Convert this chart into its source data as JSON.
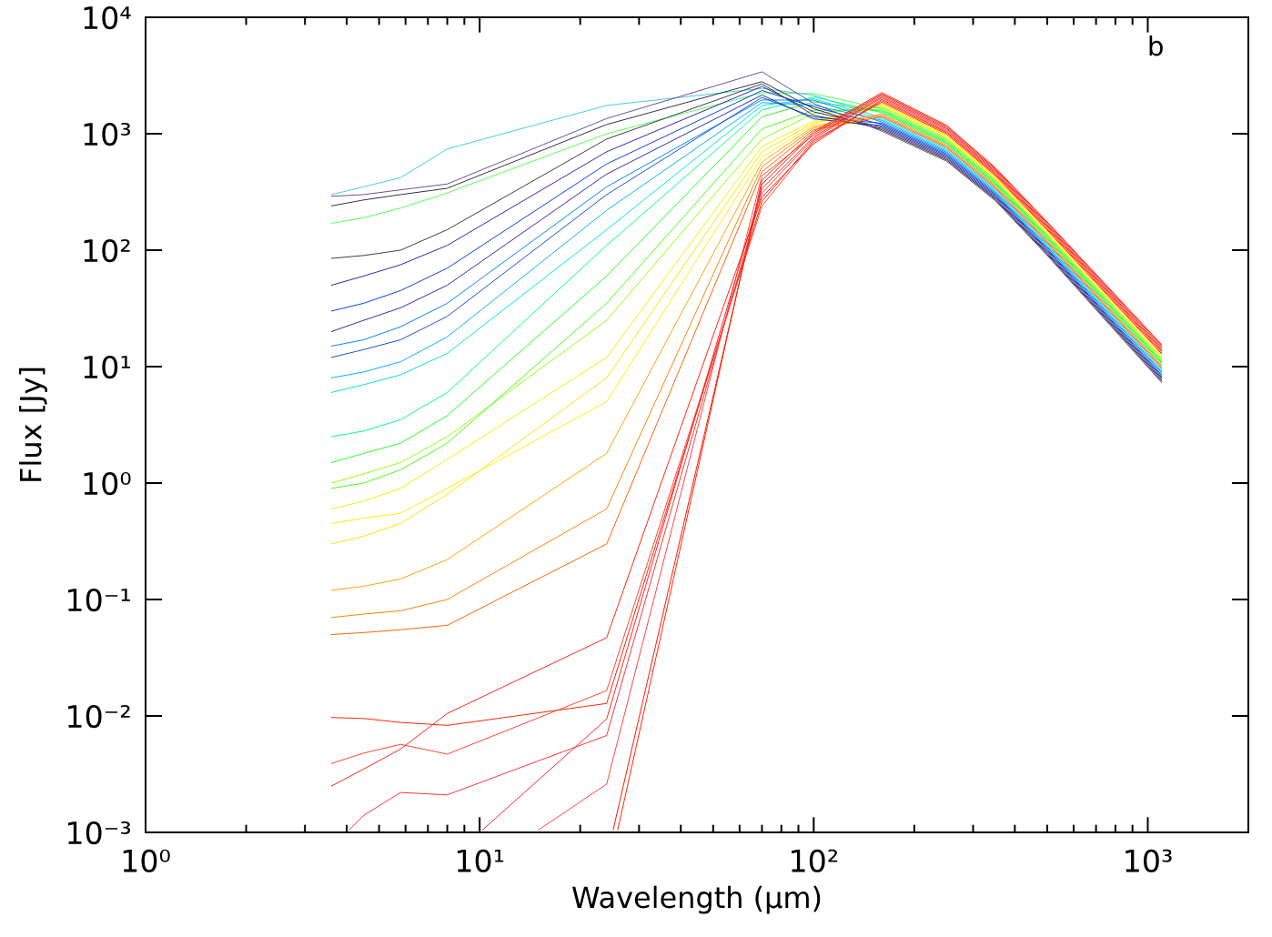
{
  "chart_data": {
    "type": "line",
    "xlabel": "Wavelength (μm)",
    "ylabel": "Flux [Jy]",
    "annotations": [
      "b"
    ],
    "x": [
      3.6,
      4.5,
      5.8,
      8,
      24,
      70,
      100,
      160,
      250,
      350,
      500,
      1100
    ],
    "log": "xy",
    "xlim": [
      1,
      2000
    ],
    "ylim": [
      0.001,
      10000
    ],
    "xticks": [
      {
        "value": 1,
        "label": "10⁰"
      },
      {
        "value": 10,
        "label": "10¹"
      },
      {
        "value": 100,
        "label": "10²"
      },
      {
        "value": 1000,
        "label": "10³"
      }
    ],
    "yticks": [
      {
        "value": 0.001,
        "label": "10⁻³"
      },
      {
        "value": 0.01,
        "label": "10⁻²"
      },
      {
        "value": 0.1,
        "label": "10⁻¹"
      },
      {
        "value": 1,
        "label": "10⁰"
      },
      {
        "value": 10,
        "label": "10¹"
      },
      {
        "value": 100,
        "label": "10²"
      },
      {
        "value": 1000,
        "label": "10³"
      },
      {
        "value": 10000,
        "label": "10⁴"
      }
    ],
    "line_style": "solid",
    "series": [
      {
        "color": "#d8ff00",
        "values": [
          0.6,
          0.7,
          0.9,
          1.6,
          12,
          780,
          1290,
          1730,
          924,
          407,
          139,
          11.9
        ]
      },
      {
        "color": "#ffe000",
        "values": [
          0.3,
          0.35,
          0.45,
          0.8,
          8,
          700,
          1240,
          1780,
          947,
          417,
          142,
          12.2
        ]
      },
      {
        "color": "#fff000",
        "values": [
          0.45,
          0.5,
          0.55,
          0.9,
          5,
          630,
          1200,
          1820,
          970,
          426,
          146,
          12.6
        ]
      },
      {
        "color": "#90ff00",
        "values": [
          1.0,
          1.2,
          1.5,
          2.5,
          25,
          900,
          1490,
          1690,
          902,
          398,
          136,
          11.6
        ]
      },
      {
        "color": "#20ff20",
        "values": [
          1.5,
          1.8,
          2.2,
          3.8,
          60,
          1400,
          1880,
          1560,
          838,
          372,
          127,
          10.8
        ]
      },
      {
        "color": "#40ff10",
        "values": [
          0.9,
          1.0,
          1.3,
          2.2,
          35,
          1100,
          1590,
          1600,
          858,
          381,
          130,
          11.0
        ]
      },
      {
        "color": "#00ff80",
        "values": [
          2.5,
          2.8,
          3.5,
          6,
          110,
          1600,
          2070,
          1520,
          818,
          364,
          124,
          10.5
        ]
      },
      {
        "color": "#50ff50",
        "values": [
          170,
          190,
          230,
          310,
          1000,
          2250,
          2210,
          1640,
          880,
          389,
          133,
          11.3
        ]
      },
      {
        "color": "#00e0e0",
        "values": [
          6,
          7,
          8.5,
          13,
          150,
          1750,
          2000,
          1330,
          723,
          325,
          111,
          9.2
        ]
      },
      {
        "color": "#40c8f0",
        "values": [
          300,
          350,
          420,
          740,
          1750,
          2450,
          2140,
          1370,
          741,
          332,
          113,
          9.5
        ]
      },
      {
        "color": "#00b0ff",
        "values": [
          8,
          9,
          11,
          18,
          220,
          1850,
          1760,
          1300,
          706,
          318,
          108,
          9.0
        ]
      },
      {
        "color": "#0080ff",
        "values": [
          15,
          17,
          22,
          35,
          350,
          1950,
          1940,
          1260,
          689,
          310,
          106,
          8.8
        ]
      },
      {
        "color": "#0040e0",
        "values": [
          30,
          35,
          45,
          70,
          550,
          2350,
          1700,
          1200,
          656,
          297,
          101,
          8.3
        ]
      },
      {
        "color": "#1050d0",
        "values": [
          12,
          14,
          17,
          27,
          300,
          2050,
          1390,
          1230,
          672,
          303,
          103,
          8.5
        ]
      },
      {
        "color": "#3020b0",
        "values": [
          50,
          60,
          75,
          110,
          700,
          2550,
          1540,
          1140,
          624,
          283,
          96,
          7.9
        ]
      },
      {
        "color": "#2a2aa0",
        "values": [
          20,
          25,
          32,
          50,
          450,
          2150,
          1340,
          1170,
          640,
          290,
          99,
          8.1
        ]
      },
      {
        "color": "#383848",
        "values": [
          85,
          90,
          100,
          150,
          900,
          2680,
          1440,
          1110,
          609,
          277,
          94,
          7.7
        ]
      },
      {
        "color": "#303030",
        "values": [
          240,
          270,
          300,
          340,
          1200,
          2800,
          1640,
          1080,
          594,
          271,
          92,
          7.5
        ]
      },
      {
        "color": "#6a4a9a",
        "values": [
          290,
          300,
          330,
          370,
          1350,
          3400,
          1820,
          1050,
          580,
          265,
          90,
          7.3
        ]
      },
      {
        "color": "#ffa000",
        "values": [
          0.12,
          0.13,
          0.15,
          0.22,
          1.8,
          570,
          1160,
          1480,
          798,
          356,
          121,
          10.2
        ]
      },
      {
        "color": "#ff8000",
        "values": [
          0.07,
          0.075,
          0.08,
          0.1,
          0.6,
          520,
          1120,
          1440,
          778,
          348,
          118,
          10.0
        ]
      },
      {
        "color": "#ff6000",
        "values": [
          0.05,
          0.052,
          0.055,
          0.06,
          0.3,
          470,
          1080,
          1400,
          760,
          340,
          116,
          9.7
        ]
      },
      {
        "color": "#ff2000",
        "values": [
          0.0097,
          0.0095,
          0.0088,
          0.0083,
          0.0128,
          262,
          880,
          1870,
          994,
          436,
          149,
          12.9
        ]
      },
      {
        "color": "#ff4030",
        "values": [
          0.0039,
          0.0048,
          0.0057,
          0.0047,
          0.0165,
          240,
          850,
          1920,
          1020,
          446,
          152,
          13.2
        ]
      },
      {
        "color": "#ff2010",
        "values": [
          0.0025,
          0.0035,
          0.0052,
          0.0105,
          0.047,
          285,
          820,
          1970,
          1040,
          456,
          156,
          13.6
        ]
      },
      {
        "color": "#ff3030",
        "x": [
          4.07,
          4.5,
          5.8,
          8,
          24,
          70,
          100,
          160,
          250,
          350,
          500,
          1100
        ],
        "values": [
          0.00105,
          0.0014,
          0.0022,
          0.0021,
          0.0068,
          310,
          910,
          2030,
          1070,
          467,
          160,
          13.9
        ]
      },
      {
        "color": "#ff2020",
        "x": [
          10.2,
          24,
          70,
          100,
          160,
          250,
          350,
          500,
          1100
        ],
        "values": [
          0.00105,
          0.0094,
          338,
          940,
          2080,
          1100,
          477,
          163,
          14.3
        ]
      },
      {
        "color": "#ff4040",
        "x": [
          15.0,
          24,
          70,
          100,
          160,
          250,
          350,
          500,
          1100
        ],
        "values": [
          0.00105,
          0.0026,
          435,
          975,
          2140,
          1120,
          488,
          167,
          14.7
        ]
      },
      {
        "color": "#ff1000",
        "x": [
          25.1,
          70,
          100,
          160,
          250,
          350,
          500,
          1100
        ],
        "values": [
          0.00105,
          368,
          1010,
          2190,
          1150,
          499,
          171,
          15.1
        ]
      },
      {
        "color": "#ff2000",
        "x": [
          25.9,
          70,
          100,
          160,
          250,
          350,
          500,
          1100
        ],
        "values": [
          0.00105,
          400,
          1045,
          2250,
          1180,
          510,
          175,
          15.5
        ]
      }
    ]
  }
}
